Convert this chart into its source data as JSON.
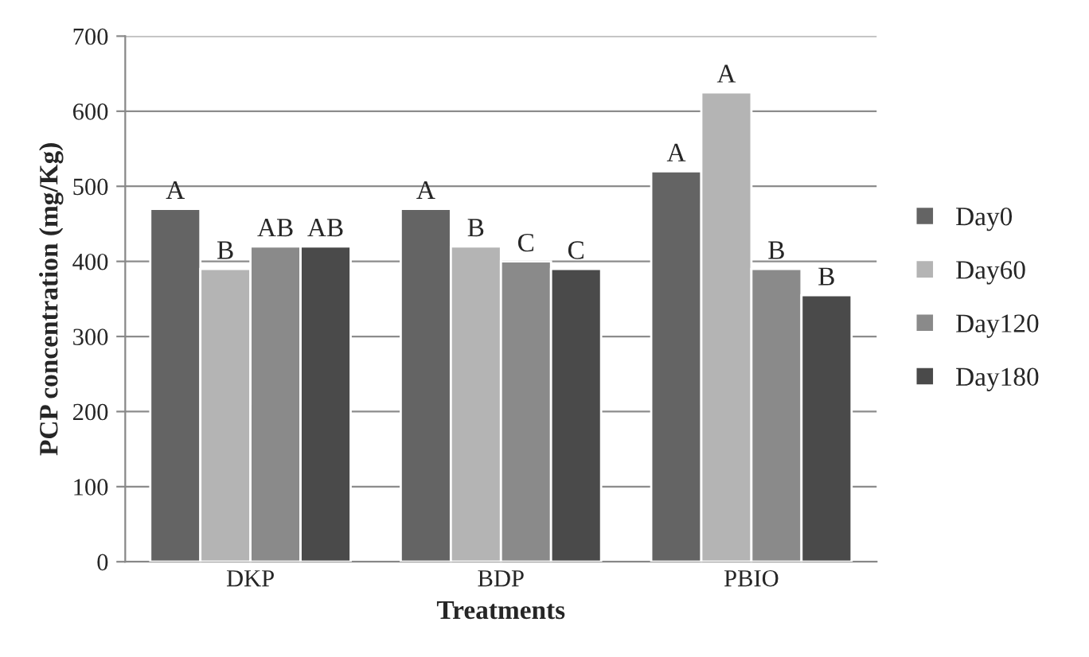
{
  "chart_data": {
    "type": "bar",
    "xlabel": "Treatments",
    "ylabel": "PCP concentration (mg/Kg)",
    "categories": [
      "DKP",
      "BDP",
      "PBIO"
    ],
    "series": [
      {
        "name": "Day0",
        "color": "#646464",
        "values": [
          470,
          470,
          520
        ],
        "value_labels": [
          "A",
          "A",
          "A"
        ]
      },
      {
        "name": "Day60",
        "color": "#b4b4b4",
        "values": [
          390,
          420,
          625
        ],
        "value_labels": [
          "B",
          "B",
          "A"
        ]
      },
      {
        "name": "Day120",
        "color": "#8a8a8a",
        "values": [
          420,
          400,
          390
        ],
        "value_labels": [
          "AB",
          "C",
          "B"
        ]
      },
      {
        "name": "Day180",
        "color": "#4a4a4a",
        "values": [
          420,
          390,
          355
        ],
        "value_labels": [
          "AB",
          "C",
          "B"
        ]
      }
    ],
    "ylim": [
      0,
      700
    ],
    "yticks": [
      0,
      100,
      200,
      300,
      400,
      500,
      600,
      700
    ],
    "grid": "y",
    "legend": "right"
  }
}
